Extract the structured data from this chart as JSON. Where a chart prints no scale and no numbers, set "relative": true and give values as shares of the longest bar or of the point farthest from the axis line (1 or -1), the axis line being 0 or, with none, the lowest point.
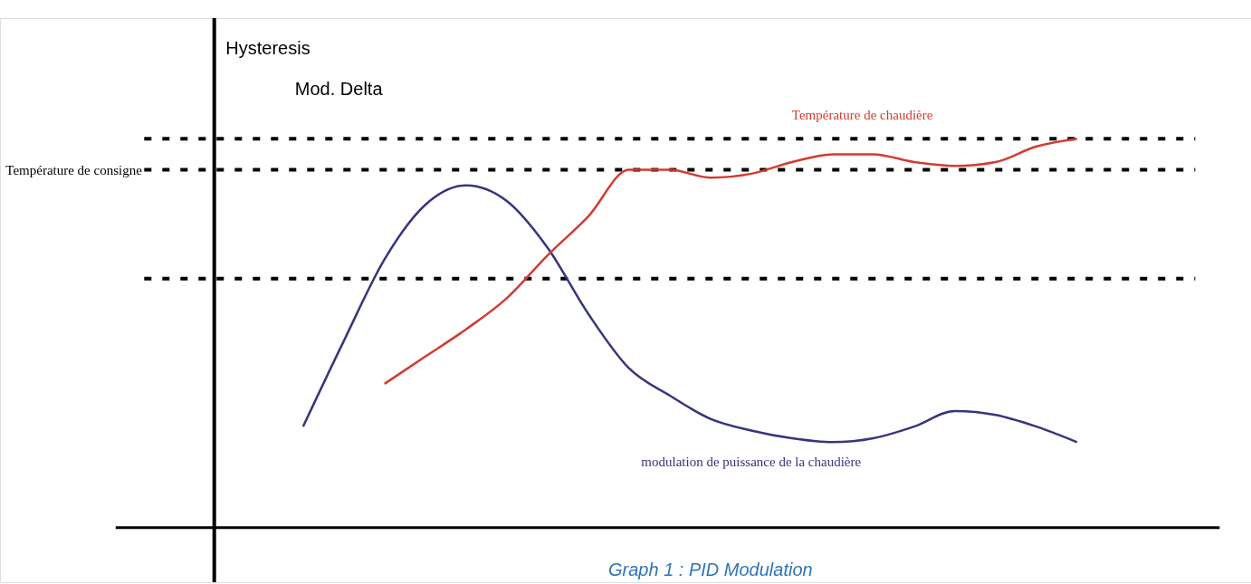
{
  "chart_data": {
    "type": "line",
    "relative": true,
    "categories": [
      null,
      null,
      null,
      null,
      null,
      null,
      null,
      null,
      null,
      null,
      null,
      null,
      null,
      null,
      null,
      null,
      null,
      null,
      null,
      null
    ],
    "series": [
      {
        "name": "modulation de puissance de la chaudière",
        "color": "#35357f",
        "values": [
          0.26,
          0.48,
          0.69,
          0.83,
          0.88,
          0.84,
          0.72,
          0.55,
          0.41,
          0.34,
          0.28,
          0.25,
          0.23,
          0.22,
          0.23,
          0.26,
          0.3,
          0.29,
          0.26,
          0.22
        ]
      },
      {
        "name": "Température de chaudière",
        "color": "#d43a30",
        "values": [
          null,
          null,
          0.37,
          0.44,
          0.51,
          0.59,
          0.7,
          0.8,
          0.92,
          0.92,
          0.9,
          0.91,
          0.94,
          0.96,
          0.96,
          0.94,
          0.93,
          0.94,
          0.98,
          1.0
        ]
      }
    ],
    "ref_lines": [
      {
        "axis": "y",
        "value": 1.0,
        "label": null,
        "color": "#000000",
        "line_style": "dashed"
      },
      {
        "axis": "y",
        "value": 0.92,
        "label": "Température de consigne",
        "color": "#000000",
        "line_style": "dashed"
      },
      {
        "axis": "y",
        "value": 0.64,
        "label": null,
        "color": "#000000",
        "line_style": "dashed"
      }
    ],
    "annotations": [
      "Hysteresis",
      "Mod. Delta",
      "Graph 1 : PID Modulation"
    ],
    "grid": false,
    "marker": "none",
    "line_style": "solid"
  }
}
